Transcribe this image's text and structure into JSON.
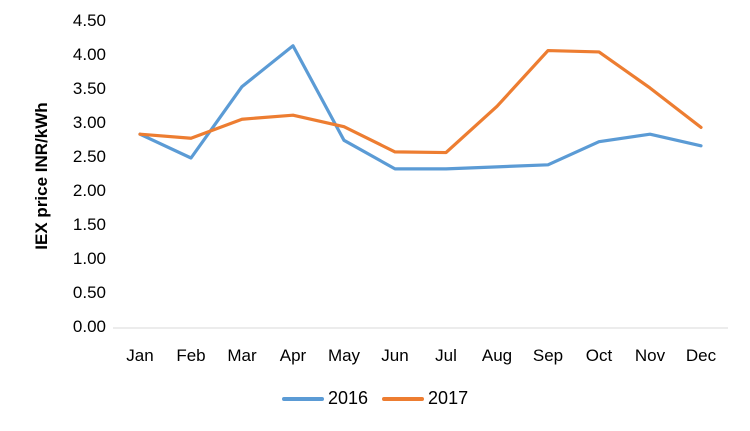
{
  "chart_data": {
    "type": "line",
    "title": "",
    "xlabel": "",
    "ylabel": "IEX price INR/kWh",
    "categories": [
      "Jan",
      "Feb",
      "Mar",
      "Apr",
      "May",
      "Jun",
      "Jul",
      "Aug",
      "Sep",
      "Oct",
      "Nov",
      "Dec"
    ],
    "series": [
      {
        "name": "2016",
        "color": "#5B9BD5",
        "values": [
          2.85,
          2.5,
          3.55,
          4.15,
          2.76,
          2.34,
          2.34,
          2.37,
          2.4,
          2.74,
          2.85,
          2.68
        ]
      },
      {
        "name": "2017",
        "color": "#ED7D31",
        "values": [
          2.85,
          2.79,
          3.07,
          3.13,
          2.96,
          2.59,
          2.58,
          3.26,
          4.08,
          4.06,
          3.53,
          2.95
        ]
      }
    ],
    "ylim": [
      0,
      4.5
    ],
    "yticks": [
      "0.00",
      "0.50",
      "1.00",
      "1.50",
      "2.00",
      "2.50",
      "3.00",
      "3.50",
      "4.00",
      "4.50"
    ],
    "grid": false,
    "legend_position": "bottom"
  },
  "legend": {
    "s0": "2016",
    "s1": "2017"
  }
}
